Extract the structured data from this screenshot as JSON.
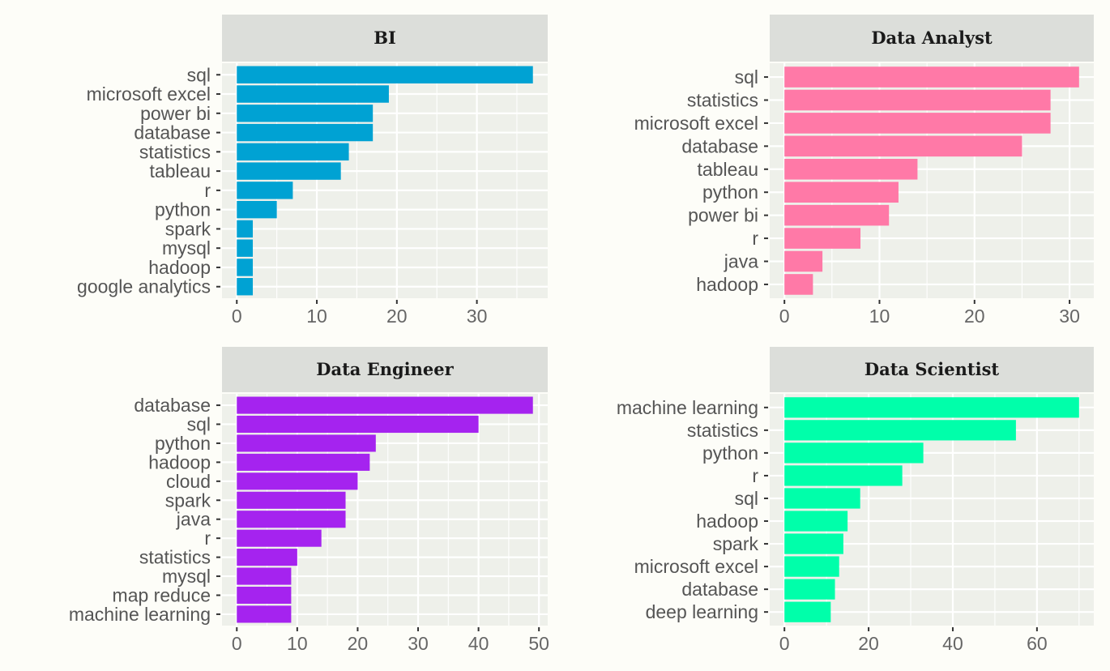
{
  "chart_data": [
    {
      "type": "bar",
      "orientation": "horizontal",
      "title": "BI",
      "color": "#00a2d3",
      "categories": [
        "sql",
        "microsoft excel",
        "power bi",
        "database",
        "statistics",
        "tableau",
        "r",
        "python",
        "spark",
        "mysql",
        "hadoop",
        "google analytics"
      ],
      "values": [
        37,
        19,
        17,
        17,
        14,
        13,
        7,
        5,
        2,
        2,
        2,
        2
      ],
      "xticks": [
        0,
        10,
        20,
        30
      ],
      "xlim": [
        0,
        37
      ],
      "grid": true
    },
    {
      "type": "bar",
      "orientation": "horizontal",
      "title": "Data Analyst",
      "color": "#ff79a7",
      "categories": [
        "sql",
        "statistics",
        "microsoft excel",
        "database",
        "tableau",
        "python",
        "power bi",
        "r",
        "java",
        "hadoop"
      ],
      "values": [
        31,
        28,
        28,
        25,
        14,
        12,
        11,
        8,
        4,
        3
      ],
      "xticks": [
        0,
        10,
        20,
        30
      ],
      "xlim": [
        0,
        31
      ],
      "grid": true
    },
    {
      "type": "bar",
      "orientation": "horizontal",
      "title": "Data Engineer",
      "color": "#a523ef",
      "categories": [
        "database",
        "sql",
        "python",
        "hadoop",
        "cloud",
        "spark",
        "java",
        "r",
        "statistics",
        "mysql",
        "map reduce",
        "machine learning"
      ],
      "values": [
        49,
        40,
        23,
        22,
        20,
        18,
        18,
        14,
        10,
        9,
        9,
        9
      ],
      "xticks": [
        0,
        10,
        20,
        30,
        40,
        50
      ],
      "xlim": [
        0,
        49
      ],
      "grid": true
    },
    {
      "type": "bar",
      "orientation": "horizontal",
      "title": "Data Scientist",
      "color": "#00ffaa",
      "categories": [
        "machine learning",
        "statistics",
        "python",
        "r",
        "sql",
        "hadoop",
        "spark",
        "microsoft excel",
        "database",
        "deep learning"
      ],
      "values": [
        70,
        55,
        33,
        28,
        18,
        15,
        14,
        13,
        12,
        11
      ],
      "xticks": [
        0,
        20,
        40,
        60
      ],
      "xlim": [
        0,
        70
      ],
      "grid": true
    }
  ]
}
